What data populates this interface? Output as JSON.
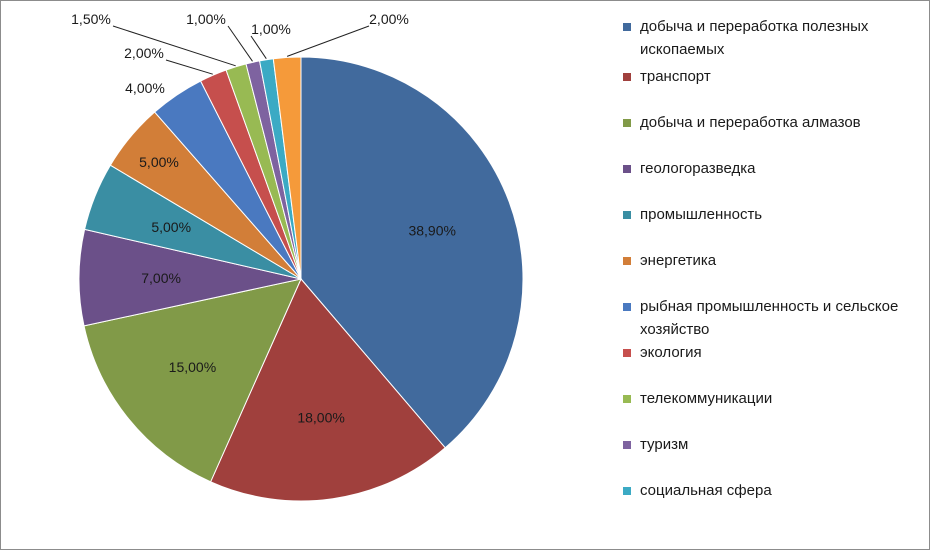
{
  "chart_data": {
    "type": "pie",
    "start_angle_deg": 0,
    "direction": "clockwise",
    "slices": [
      {
        "label": "добыча и переработка полезных ископаемых",
        "value": 38.9,
        "display": "38,90%",
        "color": "#416A9D"
      },
      {
        "label": "транспорт",
        "value": 18.0,
        "display": "18,00%",
        "color": "#A0403D"
      },
      {
        "label": "добыча  и переработка алмазов",
        "value": 15.0,
        "display": "15,00%",
        "color": "#819A48"
      },
      {
        "label": "геологоразведка",
        "value": 7.0,
        "display": "7,00%",
        "color": "#6B5089"
      },
      {
        "label": "промышленность",
        "value": 5.0,
        "display": "5,00%",
        "color": "#3A8EA3"
      },
      {
        "label": "энергетика",
        "value": 5.0,
        "display": "5,00%",
        "color": "#D27E38"
      },
      {
        "label": "рыбная промышленность и сельское хозяйство",
        "value": 4.0,
        "display": "4,00%",
        "color": "#4A79C0"
      },
      {
        "label": "экология",
        "value": 2.0,
        "display": "2,00%",
        "color": "#C64F4D"
      },
      {
        "label": "телекоммуникации",
        "value": 1.5,
        "display": "1,50%",
        "color": "#98BA53"
      },
      {
        "label": "туризм",
        "value": 1.0,
        "display": "1,00%",
        "color": "#7E63A0"
      },
      {
        "label": "социальная сфера",
        "value": 1.0,
        "display": "1,00%",
        "color": "#3BAAC4"
      },
      {
        "label": "",
        "value": 2.0,
        "display": "2,00%",
        "color": "#F59A3A"
      }
    ],
    "legend_position": "right"
  }
}
